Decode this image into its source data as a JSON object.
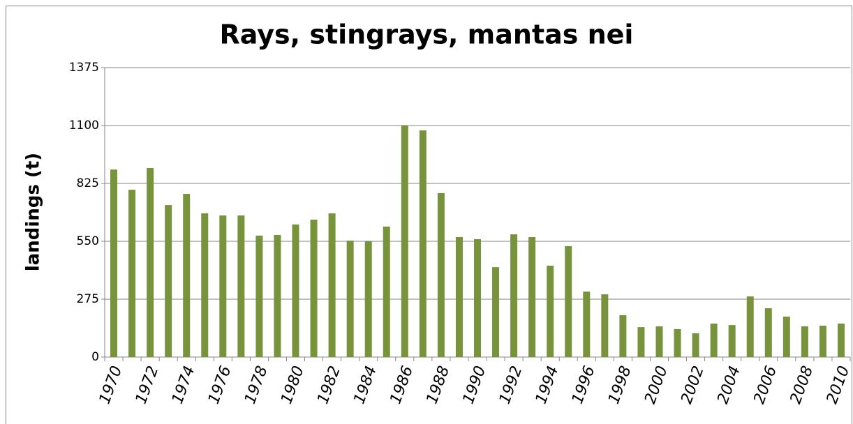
{
  "chart_data": {
    "type": "bar",
    "title": "Rays, stingrays, mantas nei",
    "y_label": "landings (t)",
    "categories": [
      "1970",
      null,
      "1972",
      null,
      "1974",
      null,
      "1976",
      null,
      "1978",
      null,
      "1980",
      null,
      "1982",
      null,
      "1984",
      null,
      "1986",
      null,
      "1988",
      null,
      "1990",
      null,
      "1992",
      null,
      "1994",
      null,
      "1996",
      null,
      "1998",
      null,
      "2000",
      null,
      "2002",
      null,
      "2004",
      null,
      "2006",
      null,
      "2008",
      null,
      "2010"
    ],
    "values": [
      891,
      795,
      898,
      722,
      775,
      683,
      673,
      673,
      577,
      580,
      630,
      653,
      683,
      553,
      550,
      620,
      1100,
      1077,
      779,
      570,
      560,
      427,
      583,
      570,
      434,
      527,
      311,
      298,
      199,
      142,
      146,
      133,
      113,
      159,
      152,
      288,
      232,
      192,
      146,
      149,
      159
    ],
    "color": "#77933c",
    "ylim": [
      0,
      1375
    ],
    "yticks": [
      0,
      275,
      550,
      825,
      1100,
      1375
    ],
    "grid": true
  }
}
